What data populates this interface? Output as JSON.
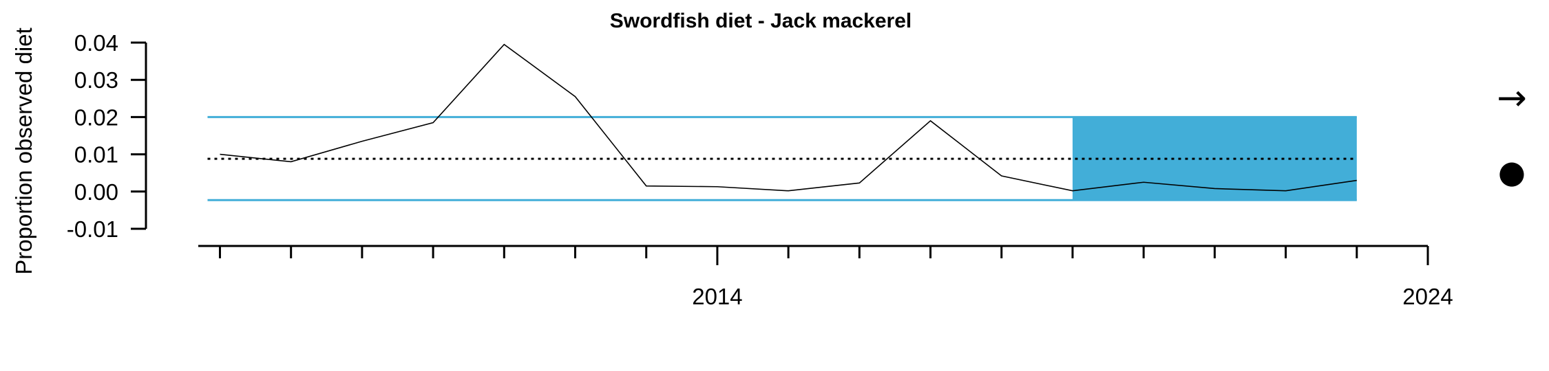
{
  "chart_data": {
    "type": "line",
    "title": "Swordfish diet - Jack mackerel",
    "ylabel": "Proportion observed diet",
    "xlabel": "",
    "x": [
      2007,
      2008,
      2009,
      2010,
      2011,
      2012,
      2013,
      2014,
      2015,
      2016,
      2017,
      2018,
      2019,
      2020,
      2021,
      2022,
      2023
    ],
    "series": [
      {
        "values": [
          0.01,
          0.008,
          0.0135,
          0.0185,
          0.0395,
          0.0255,
          0.0015,
          0.0013,
          0.0002,
          0.0023,
          0.019,
          0.0042,
          0.0002,
          0.0025,
          0.0008,
          0.0002,
          0.003
        ]
      }
    ],
    "mean": 0.0088,
    "upper_sd": 0.02,
    "lower_sd": -0.0023,
    "recent_window": [
      2019,
      2023
    ],
    "ylim": [
      -0.01,
      0.04
    ],
    "yticks": [
      "-0.01",
      "0.00",
      "0.01",
      "0.02",
      "0.03",
      "0.04"
    ],
    "xlim": [
      2006.85,
      2024
    ],
    "xticks_labeled": [
      "2014",
      "2024"
    ],
    "xticks_minor": [
      2007,
      2008,
      2009,
      2010,
      2011,
      2012,
      2013,
      2014,
      2015,
      2016,
      2017,
      2018,
      2019,
      2020,
      2021,
      2022,
      2023,
      2024
    ],
    "trend_symbol": "→",
    "status_symbol": "●",
    "colors": {
      "band": "#42aed8",
      "line": "#000000",
      "mean": "#000000"
    }
  }
}
